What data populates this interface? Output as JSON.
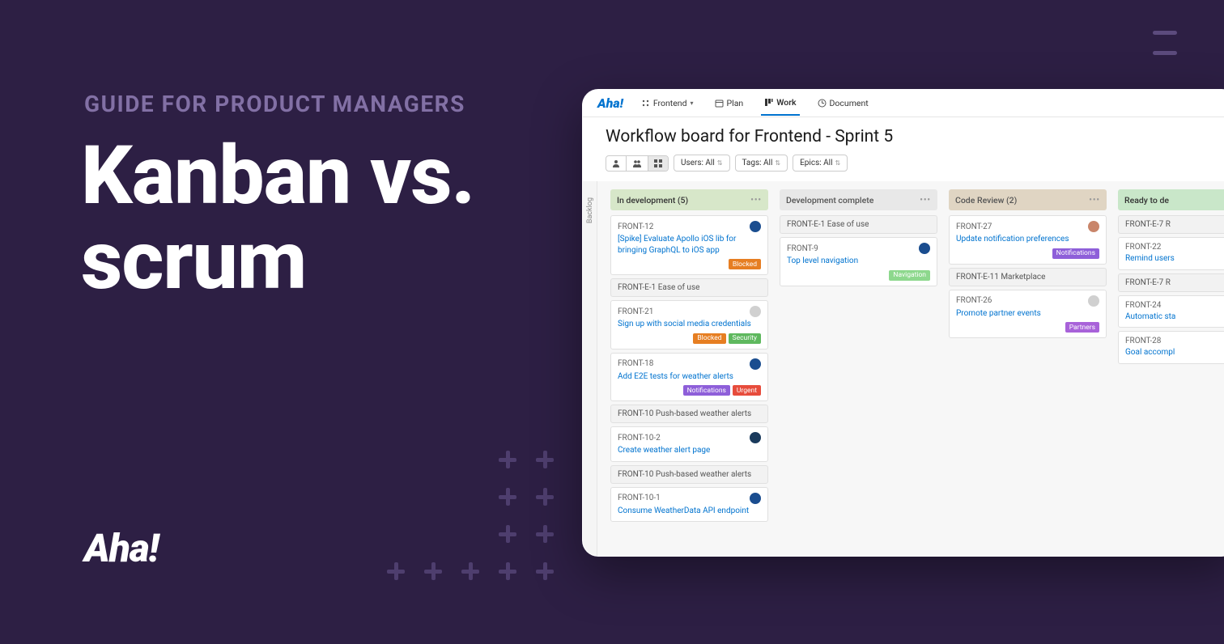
{
  "hero": {
    "subtitle": "GUIDE FOR PRODUCT MANAGERS",
    "title_line1": "Kanban vs.",
    "title_line2": "scrum",
    "brand": "Aha!"
  },
  "colors": {
    "background": "#2d1f44",
    "accent": "#0073cf"
  },
  "app": {
    "logo": "Aha!",
    "nav": {
      "workspace": "Frontend",
      "plan": "Plan",
      "work": "Work",
      "document": "Document"
    },
    "title": "Workflow board for Frontend - Sprint 5",
    "filters": {
      "users": "Users: All",
      "tags": "Tags: All",
      "epics": "Epics: All"
    },
    "backlog_label": "Backlog"
  },
  "columns": [
    {
      "header": "In development (5)",
      "bg": "#d7e7c9",
      "text": "#333",
      "groups": [
        {
          "header": null,
          "cards": [
            {
              "id": "FRONT-12",
              "title": "[Spike] Evaluate Apollo iOS lib for bringing GraphQL to iOS app",
              "avatar": "#1a4d8f",
              "tags": [
                {
                  "label": "Blocked",
                  "color": "#e67e22"
                }
              ]
            }
          ]
        },
        {
          "header": "FRONT-E-1 Ease of use",
          "cards": [
            {
              "id": "FRONT-21",
              "title": "Sign up with social media credentials",
              "avatar": "#d0d0d0",
              "tags": [
                {
                  "label": "Blocked",
                  "color": "#e67e22"
                },
                {
                  "label": "Security",
                  "color": "#5eb85e"
                }
              ]
            },
            {
              "id": "FRONT-18",
              "title": "Add E2E tests for weather alerts",
              "avatar": "#1a4d8f",
              "tags": [
                {
                  "label": "Notifications",
                  "color": "#8e5fd9"
                },
                {
                  "label": "Urgent",
                  "color": "#e74c3c"
                }
              ]
            }
          ]
        },
        {
          "header": "FRONT-10 Push-based weather alerts",
          "cards": [
            {
              "id": "FRONT-10-2",
              "title": "Create weather alert page",
              "avatar": "#1a3a5c",
              "tags": []
            }
          ]
        },
        {
          "header": "FRONT-10 Push-based weather alerts",
          "cards": [
            {
              "id": "FRONT-10-1",
              "title": "Consume WeatherData API endpoint",
              "avatar": "#1a4d8f",
              "tags": []
            }
          ]
        }
      ]
    },
    {
      "header": "Development complete",
      "bg": "#e8e8e8",
      "text": "#555",
      "groups": [
        {
          "header": "FRONT-E-1 Ease of use",
          "cards": [
            {
              "id": "FRONT-9",
              "title": "Top level navigation",
              "avatar": "#1a4d8f",
              "tags": [
                {
                  "label": "Navigation",
                  "color": "#8dd88d"
                }
              ]
            }
          ]
        }
      ]
    },
    {
      "header": "Code Review (2)",
      "bg": "#e0d5c3",
      "text": "#555",
      "groups": [
        {
          "header": null,
          "cards": [
            {
              "id": "FRONT-27",
              "title": "Update notification preferences",
              "avatar": "#c9856a",
              "tags": [
                {
                  "label": "Notifications",
                  "color": "#8e5fd9"
                }
              ]
            }
          ]
        },
        {
          "header": "FRONT-E-11 Marketplace",
          "cards": [
            {
              "id": "FRONT-26",
              "title": "Promote partner events",
              "avatar": "#d0d0d0",
              "tags": [
                {
                  "label": "Partners",
                  "color": "#a862d9"
                }
              ]
            }
          ]
        }
      ]
    },
    {
      "header": "Ready to de",
      "bg": "#c9e7c9",
      "text": "#333",
      "groups": [
        {
          "header": "FRONT-E-7 R",
          "cards": [
            {
              "id": "FRONT-22",
              "title": "Remind users",
              "avatar": null,
              "tags": []
            }
          ]
        },
        {
          "header": "FRONT-E-7 R",
          "cards": [
            {
              "id": "FRONT-24",
              "title": "Automatic sta",
              "avatar": null,
              "tags": []
            }
          ]
        },
        {
          "header": null,
          "cards": [
            {
              "id": "FRONT-28",
              "title": "Goal accompl",
              "avatar": null,
              "tags": []
            }
          ]
        }
      ]
    }
  ]
}
